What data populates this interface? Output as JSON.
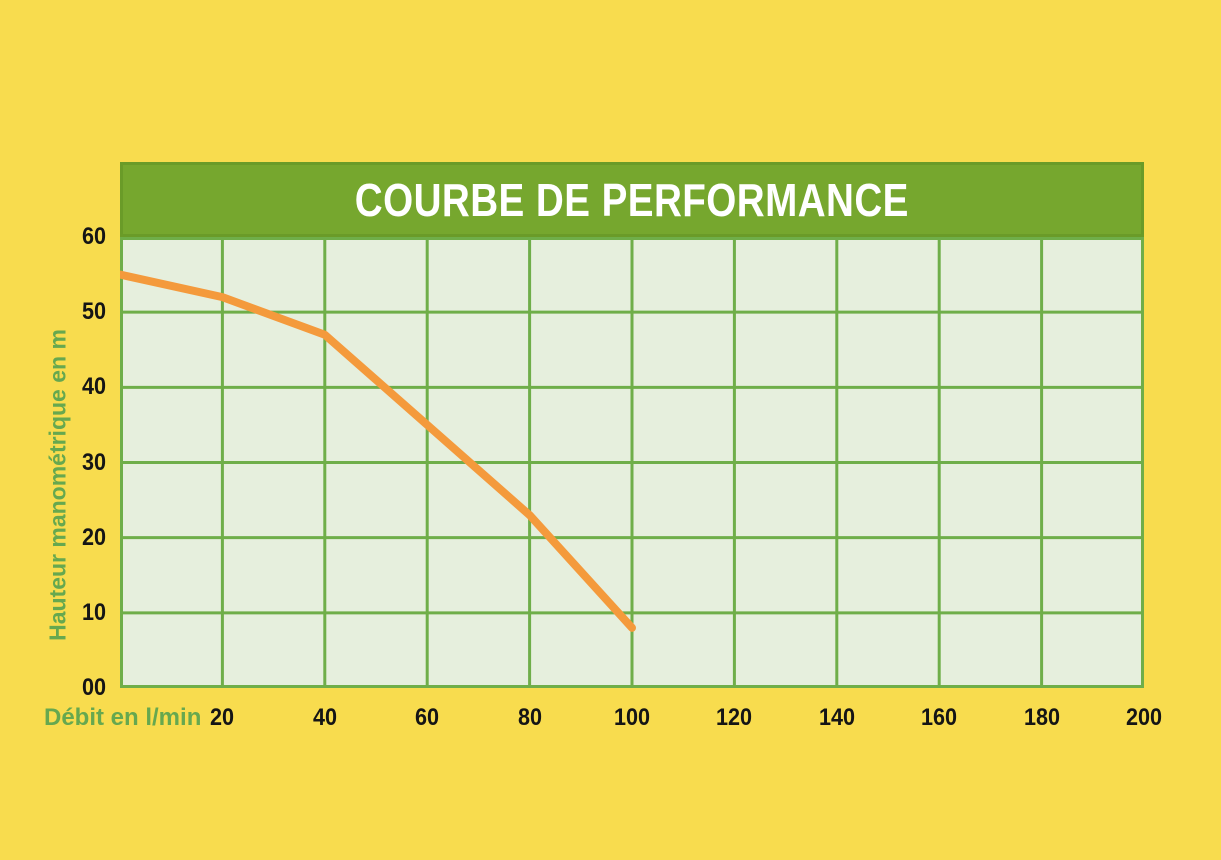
{
  "colors": {
    "background": "#f8dc4e",
    "banner": "#76a72e",
    "banner_border": "#6a9b28",
    "plot_bg": "#e6efdd",
    "grid": "#6fae49",
    "curve": "#f49a3c",
    "axis_title": "#66a84f",
    "tick_label": "#151515",
    "title_text": "#ffffff"
  },
  "chart_data": {
    "type": "line",
    "title": "COURBE DE PERFORMANCE",
    "xlabel": "Débit en l/min",
    "ylabel": "Hauteur manométrique en m",
    "xlim": [
      0,
      200
    ],
    "ylim": [
      0,
      60
    ],
    "x_tick_values": [
      20,
      40,
      60,
      80,
      100,
      120,
      140,
      160,
      180,
      200
    ],
    "x_tick_labels": [
      "20",
      "40",
      "60",
      "80",
      "100",
      "120",
      "140",
      "160",
      "180",
      "200"
    ],
    "y_tick_values": [
      0,
      10,
      20,
      30,
      40,
      50,
      60
    ],
    "y_tick_labels": [
      "00",
      "10",
      "20",
      "30",
      "40",
      "50",
      "60"
    ],
    "grid": true,
    "legend": "none",
    "series": [
      {
        "name": "courbe-performance",
        "x": [
          0,
          20,
          40,
          60,
          80,
          100
        ],
        "y": [
          55,
          52,
          47,
          35,
          23,
          8
        ]
      }
    ]
  }
}
